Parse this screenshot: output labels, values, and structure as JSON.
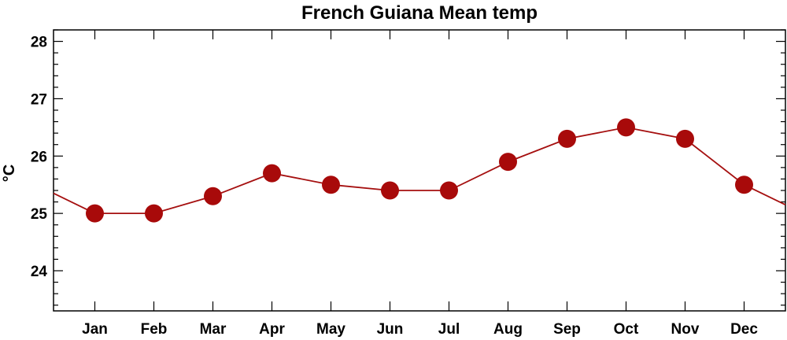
{
  "chart_data": {
    "type": "line",
    "title": "French Guiana Mean temp",
    "xlabel": "",
    "ylabel": "°C",
    "categories": [
      "Jan",
      "Feb",
      "Mar",
      "Apr",
      "May",
      "Jun",
      "Jul",
      "Aug",
      "Sep",
      "Oct",
      "Nov",
      "Dec"
    ],
    "series": [
      {
        "values": [
          25.0,
          25.0,
          25.3,
          25.7,
          25.5,
          25.4,
          25.4,
          25.9,
          26.3,
          26.5,
          26.3,
          25.5
        ]
      }
    ],
    "y_ticks": [
      24,
      25,
      26,
      27,
      28
    ],
    "ylim": [
      23.3,
      28.2
    ],
    "grid": false,
    "colors": {
      "series": "#a50f0f",
      "marker": "#a80a0a",
      "axis": "#000000"
    }
  }
}
